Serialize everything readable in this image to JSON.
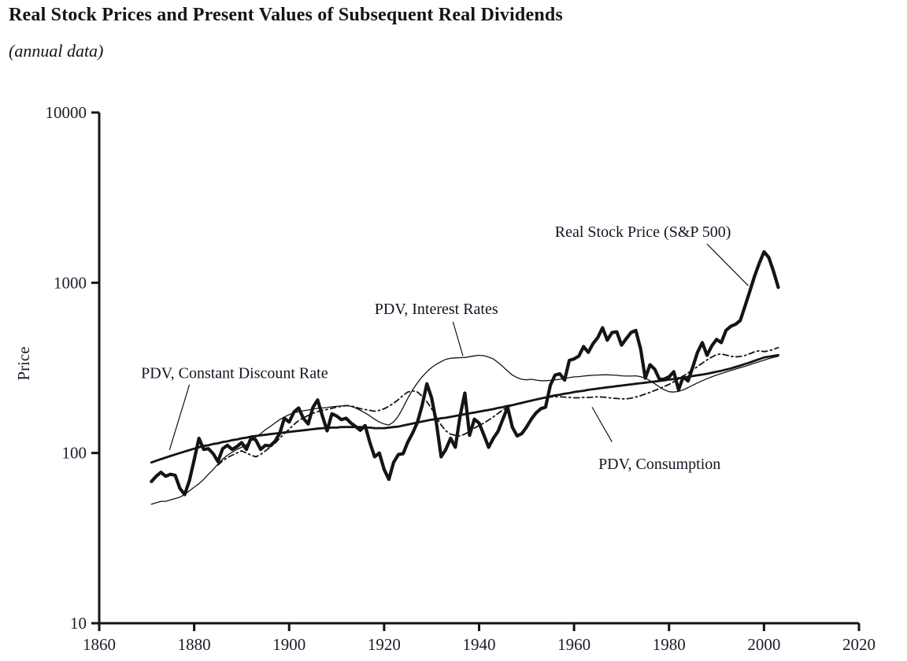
{
  "header": {
    "title": "Real Stock Prices and Present Values of Subsequent Real Dividends",
    "subtitle": "(annual data)"
  },
  "chart_data": {
    "type": "line",
    "title": "Real Stock Prices and Present Values of Subsequent Real Dividends",
    "subtitle": "(annual data)",
    "xlabel": "",
    "ylabel": "Price",
    "x_scale": "linear",
    "y_scale": "log",
    "xlim": [
      1860,
      2020
    ],
    "ylim": [
      10,
      10000
    ],
    "x_ticks": [
      1860,
      1880,
      1900,
      1920,
      1940,
      1960,
      1980,
      2000,
      2020
    ],
    "y_ticks": [
      10,
      100,
      1000,
      10000
    ],
    "grid": false,
    "legend": "inline-annotations",
    "ink_color": "#141414",
    "background_color": "#ffffff",
    "series": [
      {
        "name": "PDV, Interest Rates",
        "id": "pdv-interest-rates",
        "line_style": "thin",
        "start_year": 1871,
        "values": [
          50,
          51,
          52,
          52,
          53,
          54,
          55,
          57,
          60,
          63,
          66,
          70,
          75,
          80,
          86,
          92,
          97,
          101,
          105,
          108,
          112,
          118,
          124,
          130,
          137,
          143,
          150,
          157,
          163,
          168,
          172,
          175,
          177,
          179,
          181,
          183,
          184,
          185,
          187,
          188,
          189,
          190,
          188,
          184,
          178,
          172,
          165,
          158,
          152,
          148,
          146,
          152,
          165,
          185,
          210,
          235,
          258,
          280,
          300,
          318,
          332,
          344,
          355,
          360,
          362,
          363,
          364,
          368,
          372,
          375,
          373,
          366,
          357,
          340,
          322,
          303,
          287,
          277,
          271,
          269,
          271,
          268,
          266,
          266,
          267,
          269,
          271,
          274,
          277,
          280,
          281,
          283,
          285,
          286,
          287,
          288,
          288,
          287,
          286,
          284,
          283,
          283,
          284,
          281,
          275,
          266,
          255,
          244,
          235,
          229,
          228,
          230,
          235,
          242,
          250,
          258,
          266,
          273,
          280,
          287,
          293,
          299,
          305,
          311,
          317,
          323,
          330,
          337,
          344,
          351,
          358,
          364,
          370
        ]
      },
      {
        "name": "PDV, Consumption",
        "id": "pdv-consumption",
        "line_style": "dashed",
        "start_year": 1885,
        "values": [
          85,
          90,
          94,
          97,
          100,
          103,
          100,
          97,
          95,
          98,
          103,
          108,
          114,
          122,
          130,
          138,
          147,
          155,
          161,
          166,
          171,
          175,
          178,
          180,
          183,
          186,
          188,
          190,
          189,
          186,
          182,
          180,
          178,
          176,
          178,
          182,
          188,
          196,
          206,
          218,
          228,
          232,
          228,
          216,
          200,
          182,
          163,
          146,
          135,
          129,
          127,
          126,
          129,
          134,
          140,
          145,
          150,
          156,
          163,
          171,
          179,
          186,
          191,
          195,
          198,
          200,
          203,
          206,
          209,
          211,
          213,
          214,
          214,
          213,
          212,
          211,
          211,
          212,
          212,
          213,
          214,
          213,
          212,
          210,
          209,
          208,
          208,
          210,
          213,
          217,
          222,
          227,
          233,
          239,
          246,
          253,
          262,
          272,
          283,
          295,
          308,
          322,
          337,
          352,
          366,
          378,
          382,
          376,
          370,
          367,
          369,
          374,
          383,
          393,
          399,
          394,
          398,
          406,
          416
        ]
      },
      {
        "name": "PDV, Constant Discount Rate",
        "id": "pdv-constant-discount-rate",
        "line_style": "medium",
        "start_year": 1871,
        "values": [
          88,
          90,
          92,
          94,
          96,
          98,
          100,
          102,
          104,
          106,
          108,
          110,
          111,
          113,
          114,
          116,
          117,
          119,
          120,
          122,
          123,
          125,
          126,
          127,
          128,
          129,
          130,
          131,
          132,
          133,
          134,
          135,
          136,
          137,
          138,
          139,
          140,
          140,
          141,
          141,
          142,
          142,
          142,
          142,
          142,
          141,
          141,
          140,
          140,
          140,
          141,
          142,
          143,
          145,
          147,
          149,
          151,
          153,
          155,
          157,
          158,
          160,
          161,
          163,
          165,
          167,
          169,
          171,
          173,
          175,
          177,
          179,
          181,
          184,
          186,
          189,
          191,
          194,
          197,
          200,
          203,
          206,
          209,
          212,
          215,
          218,
          220,
          223,
          225,
          228,
          230,
          232,
          235,
          237,
          239,
          241,
          243,
          245,
          247,
          249,
          251,
          253,
          255,
          257,
          259,
          261,
          263,
          265,
          267,
          270,
          272,
          275,
          277,
          280,
          283,
          286,
          289,
          292,
          296,
          300,
          304,
          309,
          314,
          320,
          326,
          333,
          340,
          348,
          356,
          364,
          368,
          372,
          376
        ]
      },
      {
        "name": "Real Stock Price (S&P 500)",
        "id": "real-stock-price",
        "line_style": "thick",
        "start_year": 1871,
        "values": [
          68,
          73,
          77,
          73,
          75,
          74,
          62,
          57,
          69,
          91,
          122,
          105,
          106,
          99,
          89,
          106,
          111,
          105,
          109,
          115,
          105,
          123,
          119,
          105,
          111,
          110,
          117,
          130,
          160,
          152,
          174,
          184,
          160,
          148,
          185,
          205,
          165,
          135,
          170,
          165,
          157,
          160,
          150,
          143,
          136,
          145,
          115,
          95,
          100,
          80,
          70,
          88,
          98,
          99,
          116,
          131,
          151,
          190,
          255,
          211,
          151,
          95,
          105,
          122,
          108,
          165,
          225,
          127,
          158,
          150,
          128,
          108,
          122,
          134,
          158,
          186,
          142,
          126,
          130,
          142,
          158,
          172,
          182,
          186,
          250,
          287,
          292,
          268,
          350,
          357,
          371,
          422,
          390,
          440,
          477,
          544,
          460,
          510,
          515,
          430,
          470,
          510,
          525,
          410,
          275,
          330,
          310,
          270,
          272,
          280,
          300,
          235,
          280,
          265,
          320,
          390,
          445,
          375,
          425,
          465,
          445,
          525,
          555,
          570,
          600,
          730,
          890,
          1090,
          1300,
          1520,
          1410,
          1170,
          940
        ]
      }
    ],
    "annotations": [
      {
        "id": "real-stock-price",
        "label": "Real Stock Price (S&P 500)",
        "at": {
          "x": 1974.5,
          "y": 2000
        },
        "leader": [
          {
            "x": 1988,
            "y": 1690
          },
          {
            "x": 1996.7,
            "y": 960
          }
        ]
      },
      {
        "id": "pdv-interest-rates",
        "label": "PDV, Interest Rates",
        "at": {
          "x": 1931,
          "y": 705
        },
        "leader": [
          {
            "x": 1934.5,
            "y": 590
          },
          {
            "x": 1936.6,
            "y": 372
          }
        ]
      },
      {
        "id": "pdv-constant-discount-rate",
        "label": "PDV, Constant Discount Rate",
        "at": {
          "x": 1888.5,
          "y": 296
        },
        "leader": [
          {
            "x": 1879,
            "y": 252
          },
          {
            "x": 1874.8,
            "y": 104
          }
        ]
      },
      {
        "id": "pdv-consumption",
        "label": "PDV, Consumption",
        "at": {
          "x": 1978,
          "y": 87
        },
        "leader": [
          {
            "x": 1968,
            "y": 116
          },
          {
            "x": 1963.8,
            "y": 186
          }
        ]
      }
    ]
  }
}
